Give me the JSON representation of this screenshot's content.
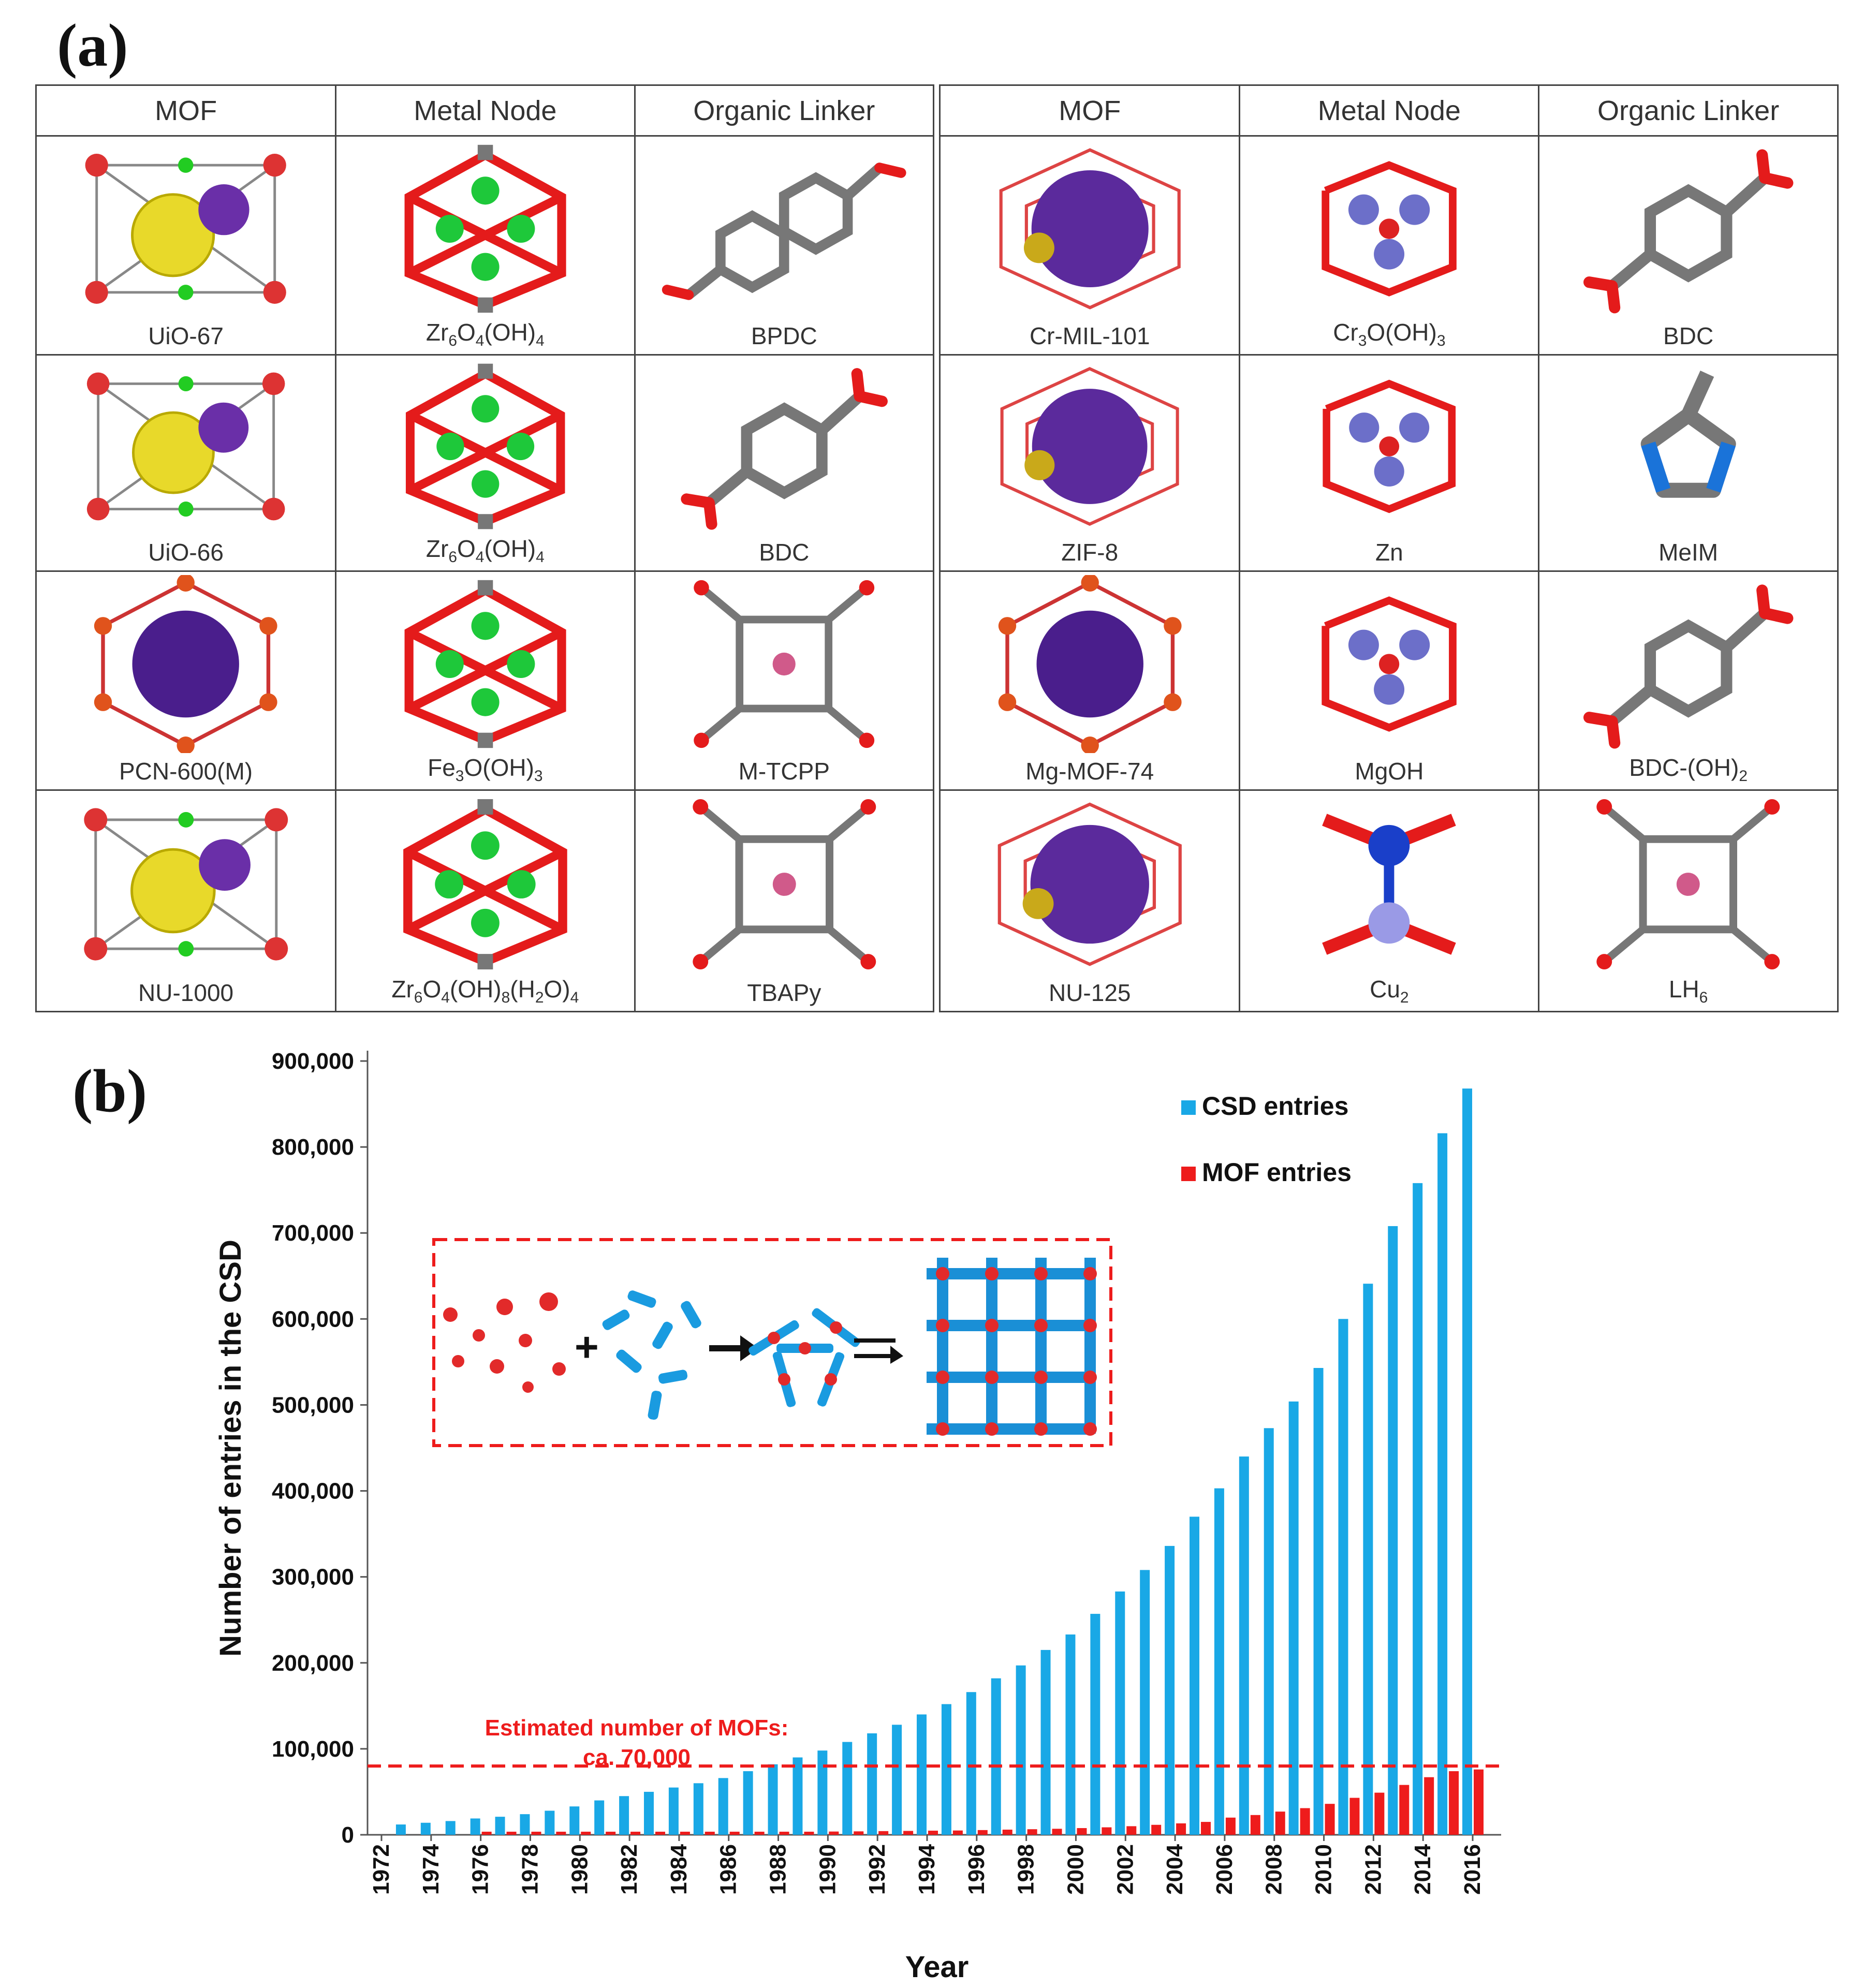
{
  "panel_a": {
    "label": "(a)",
    "headers": [
      "MOF",
      "Metal Node",
      "Organic Linker"
    ],
    "left_rows": [
      {
        "mof": "UiO-67",
        "node": "Zr6O4(OH)4",
        "linker": "BPDC",
        "mof_icon": "uio-67-framework-icon",
        "node_icon": "zr-cluster-icon",
        "linker_icon": "bpdc-linker-icon"
      },
      {
        "mof": "UiO-66",
        "node": "Zr6O4(OH)4",
        "linker": "BDC",
        "mof_icon": "uio-66-framework-icon",
        "node_icon": "zr-cluster-icon",
        "linker_icon": "bdc-linker-icon"
      },
      {
        "mof": "PCN-600(M)",
        "node": "Fe3O(OH)3",
        "linker": "M-TCPP",
        "mof_icon": "pcn-600-framework-icon",
        "node_icon": "fe-cluster-icon",
        "linker_icon": "porphyrin-linker-icon"
      },
      {
        "mof": "NU-1000",
        "node": "Zr6O4(OH)8(H2O)4",
        "linker": "TBAPy",
        "mof_icon": "nu-1000-framework-icon",
        "node_icon": "zr-cluster-icon",
        "linker_icon": "pyrene-linker-icon"
      }
    ],
    "right_rows": [
      {
        "mof": "Cr-MIL-101",
        "node": "Cr3O(OH)3",
        "linker": "BDC",
        "mof_icon": "mil-101-framework-icon",
        "node_icon": "cr-cluster-icon",
        "linker_icon": "bdc-linker-icon"
      },
      {
        "mof": "ZIF-8",
        "node": "Zn",
        "linker": "MeIM",
        "mof_icon": "zif-8-framework-icon",
        "node_icon": "zn-node-icon",
        "linker_icon": "imidazolate-linker-icon"
      },
      {
        "mof": "Mg-MOF-74",
        "node": "MgOH",
        "linker": "BDC-(OH)2",
        "mof_icon": "mof-74-framework-icon",
        "node_icon": "mg-cluster-icon",
        "linker_icon": "dobdc-linker-icon"
      },
      {
        "mof": "NU-125",
        "node": "Cu2",
        "linker": "LH6",
        "mof_icon": "nu-125-framework-icon",
        "node_icon": "cu-paddlewheel-icon",
        "linker_icon": "hexacarboxylate-linker-icon"
      }
    ]
  },
  "panel_b": {
    "label": "(b)",
    "annotation_line1": "Estimated number of MOFs:",
    "annotation_line2": "ca. 70,000"
  },
  "colors": {
    "csd": "#19a8e6",
    "mof": "#ee1c1c",
    "annotation": "#ee1c1c"
  },
  "chart_data": {
    "type": "bar",
    "xlabel": "Year",
    "ylabel": "Number of entries in the CSD",
    "ylim": [
      0,
      900000
    ],
    "yticks": [
      0,
      100000,
      200000,
      300000,
      400000,
      500000,
      600000,
      700000,
      800000,
      900000
    ],
    "xticks": [
      1972,
      1974,
      1976,
      1978,
      1980,
      1982,
      1984,
      1986,
      1988,
      1990,
      1992,
      1994,
      1996,
      1998,
      2000,
      2002,
      2004,
      2006,
      2008,
      2010,
      2012,
      2014,
      2016
    ],
    "legend_position": "top-right",
    "categories": [
      1973,
      1974,
      1975,
      1976,
      1977,
      1978,
      1979,
      1980,
      1981,
      1982,
      1983,
      1984,
      1985,
      1986,
      1987,
      1988,
      1989,
      1990,
      1991,
      1992,
      1993,
      1994,
      1995,
      1996,
      1997,
      1998,
      1999,
      2000,
      2001,
      2002,
      2003,
      2004,
      2005,
      2006,
      2007,
      2008,
      2009,
      2010,
      2011,
      2012,
      2013,
      2014,
      2015,
      2016
    ],
    "series": [
      {
        "name": "CSD entries",
        "values": [
          12000,
          14000,
          16000,
          19000,
          21000,
          24000,
          28000,
          33000,
          40000,
          45000,
          50000,
          55000,
          60000,
          66000,
          74000,
          82000,
          90000,
          98000,
          108000,
          118000,
          128000,
          140000,
          152000,
          166000,
          182000,
          197000,
          215000,
          233000,
          257000,
          283000,
          308000,
          336000,
          370000,
          403000,
          440000,
          473000,
          504000,
          543000,
          600000,
          641000,
          708000,
          758000,
          816000,
          868000
        ]
      },
      {
        "name": "MOF entries",
        "values": [
          0,
          0,
          0,
          500,
          800,
          1000,
          1200,
          1500,
          1800,
          2000,
          2300,
          2500,
          2800,
          3000,
          3200,
          3400,
          3600,
          3800,
          4000,
          4300,
          4500,
          4800,
          5000,
          5500,
          6000,
          6500,
          7000,
          7800,
          8700,
          10000,
          11600,
          13300,
          15000,
          20000,
          23000,
          27000,
          31000,
          36000,
          43000,
          49000,
          58000,
          67000,
          74000,
          76000
        ]
      }
    ],
    "reference_line": {
      "value": 80000,
      "style": "dashed"
    },
    "inset": "mof-self-assembly-scheme"
  }
}
